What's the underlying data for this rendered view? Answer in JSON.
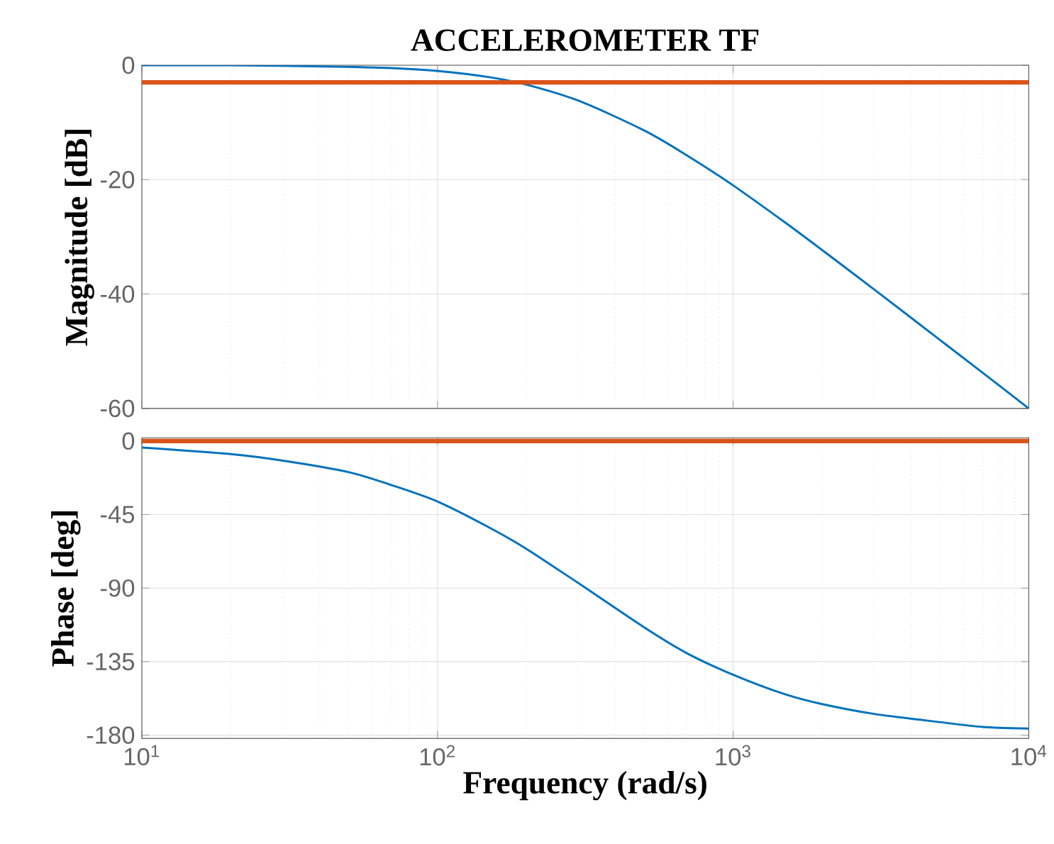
{
  "chart_data": [
    {
      "type": "line",
      "title": "ACCELEROMETER TF",
      "ylabel": "Magnitude [dB]",
      "log": "x",
      "grid": true,
      "tick_labels": "y",
      "x": [
        10,
        20,
        30,
        50,
        70,
        100,
        150,
        200,
        300,
        500,
        700,
        1000,
        1500,
        2000,
        3000,
        5000,
        7000,
        10000
      ],
      "series": [
        {
          "color": "#0072bd",
          "values": [
            0,
            0,
            -0.1,
            -0.3,
            -0.5,
            -1.0,
            -2.1,
            -3.4,
            -6.2,
            -11.4,
            -15.8,
            -21.0,
            -27.5,
            -32.3,
            -39.2,
            -48.0,
            -53.8,
            -60.0
          ]
        }
      ],
      "ref_lines": [
        {
          "axis": "y",
          "value": -3,
          "color": "#d95319"
        }
      ],
      "xlim": [
        10,
        10000
      ],
      "ylim": [
        -60,
        0
      ],
      "xticks": [
        {
          "value": 10,
          "label": null
        },
        {
          "value": 100,
          "label": null
        },
        {
          "value": 1000,
          "label": null
        },
        {
          "value": 10000,
          "label": null
        }
      ],
      "yticks": [
        -60,
        -40,
        -20,
        0
      ]
    },
    {
      "type": "line",
      "xlabel": "Frequency (rad/s)",
      "ylabel": "Phase [deg]",
      "log": "x",
      "grid": true,
      "x": [
        10,
        20,
        30,
        50,
        70,
        100,
        150,
        200,
        300,
        500,
        700,
        1000,
        1500,
        2000,
        3000,
        5000,
        7000,
        10000
      ],
      "series": [
        {
          "color": "#0072bd",
          "values": [
            -4,
            -8,
            -12,
            -19,
            -27,
            -37,
            -53,
            -66,
            -87,
            -114,
            -130,
            -143,
            -155,
            -161,
            -167,
            -172,
            -175,
            -176
          ]
        }
      ],
      "ref_lines": [
        {
          "axis": "y",
          "value": 0,
          "color": "#d95319"
        }
      ],
      "xlim": [
        10,
        10000
      ],
      "ylim": [
        -182,
        2
      ],
      "xticks": [
        {
          "value": 10,
          "label": "10$^{1}$"
        },
        {
          "value": 100,
          "label": "10$^{2}$"
        },
        {
          "value": 1000,
          "label": "10$^{3}$"
        },
        {
          "value": 10000,
          "label": "10$^{4}$"
        }
      ],
      "yticks": [
        -180,
        -135,
        -90,
        -45,
        0
      ]
    }
  ]
}
